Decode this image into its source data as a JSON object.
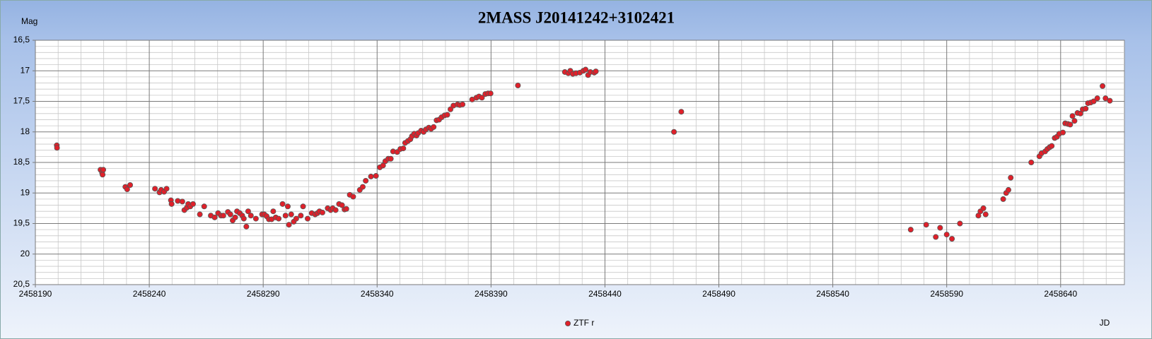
{
  "chart_data": {
    "type": "scatter",
    "title": "2MASS J20141242+3102421",
    "ylabel": "Mag",
    "xlabel": "JD",
    "xlim": [
      2458190,
      2458668
    ],
    "xticks": [
      2458190,
      2458240,
      2458290,
      2458340,
      2458390,
      2458440,
      2458490,
      2458540,
      2458590,
      2458640
    ],
    "ylim": [
      16.5,
      20.5
    ],
    "y_inverted": true,
    "yticks": [
      {
        "value": 16.5,
        "label": "16,5"
      },
      17,
      {
        "value": 17.5,
        "label": "17,5"
      },
      18,
      {
        "value": 18.5,
        "label": "18,5"
      },
      19,
      {
        "value": 19.5,
        "label": "19,5"
      },
      20,
      {
        "value": 20.5,
        "label": "20,5"
      }
    ],
    "grid": true,
    "minor_grid": true,
    "legend": "bottom",
    "x": [
      2458199.4,
      2458199.5,
      2458218.6,
      2458219.3,
      2458219.8,
      2458219.5,
      2458229.5,
      2458230.3,
      2458231.6,
      2458242.5,
      2458244.5,
      2458245.2,
      2458246.5,
      2458247.6,
      2458249.5,
      2458249.8,
      2458252.5,
      2458254.5,
      2458255.4,
      2458256.5,
      2458257.1,
      2458258.0,
      2458259.2,
      2458262.2,
      2458264.1,
      2458267.0,
      2458268.7,
      2458270.2,
      2458271.5,
      2458272.5,
      2458274.5,
      2458275.6,
      2458276.6,
      2458277.7,
      2458278.5,
      2458279.7,
      2458280.8,
      2458281.5,
      2458282.6,
      2458283.4,
      2458284.6,
      2458286.8,
      2458289.5,
      2458290.5,
      2458291.5,
      2458292.5,
      2458293.7,
      2458294.4,
      2458295.5,
      2458296.8,
      2458298.5,
      2458299.8,
      2458300.8,
      2458301.3,
      2458302.3,
      2458303.4,
      2458304.5,
      2458306.5,
      2458307.5,
      2458309.5,
      2458311.3,
      2458312.8,
      2458313.8,
      2458314.7,
      2458316.0,
      2458318.3,
      2458319.6,
      2458320.5,
      2458321.8,
      2458323.3,
      2458324.6,
      2458325.7,
      2458326.5,
      2458328.0,
      2458329.5,
      2458332.4,
      2458333.7,
      2458335.0,
      2458337.3,
      2458339.5,
      2458341.2,
      2458342.6,
      2458343.6,
      2458344.9,
      2458346.0,
      2458347.0,
      2458348.8,
      2458350.2,
      2458351.5,
      2458352.3,
      2458353.5,
      2458354.6,
      2458355.3,
      2458356.3,
      2458357.3,
      2458358.0,
      2458359.3,
      2458360.4,
      2458361.4,
      2458362.7,
      2458363.7,
      2458364.8,
      2458366.1,
      2458367.2,
      2458368.3,
      2458369.6,
      2458370.8,
      2458372.2,
      2458373.5,
      2458375.3,
      2458376.3,
      2458377.5,
      2458381.7,
      2458383.6,
      2458384.7,
      2458386.0,
      2458387.5,
      2458388.7,
      2458389.8,
      2458401.8,
      2458422.4,
      2458423.9,
      2458424.8,
      2458425.9,
      2458427.3,
      2458429.0,
      2458430.5,
      2458431.5,
      2458432.6,
      2458433.6,
      2458435.3,
      2458436.0,
      2458470.3,
      2458473.5,
      2458574.2,
      2458581.0,
      2458585.2,
      2458587.1,
      2458590.0,
      2458592.3,
      2458595.8,
      2458603.9,
      2458604.8,
      2458606.1,
      2458607.1,
      2458614.8,
      2458616.1,
      2458617.1,
      2458618.1,
      2458627.1,
      2458630.7,
      2458631.6,
      2458633.2,
      2458634.2,
      2458635.2,
      2458636.1,
      2458637.4,
      2458638.4,
      2458639.4,
      2458641.0,
      2458642.0,
      2458643.2,
      2458644.2,
      2458645.2,
      2458646.1,
      2458647.4,
      2458648.7,
      2458649.7,
      2458651.0,
      2458652.0,
      2458653.2,
      2458654.5,
      2458656.1,
      2458658.4,
      2458659.7,
      2458661.6
    ],
    "series": [
      {
        "name": "ZTF r",
        "color": "#e0202a",
        "values": [
          18.22,
          18.26,
          18.62,
          18.67,
          18.62,
          18.7,
          18.9,
          18.94,
          18.87,
          18.93,
          18.99,
          18.95,
          18.98,
          18.93,
          19.12,
          19.18,
          19.13,
          19.14,
          19.28,
          19.24,
          19.18,
          19.22,
          19.18,
          19.35,
          19.22,
          19.37,
          19.4,
          19.33,
          19.37,
          19.37,
          19.31,
          19.35,
          19.45,
          19.4,
          19.3,
          19.33,
          19.37,
          19.42,
          19.55,
          19.3,
          19.37,
          19.42,
          19.35,
          19.35,
          19.38,
          19.43,
          19.43,
          19.3,
          19.4,
          19.42,
          19.18,
          19.37,
          19.22,
          19.52,
          19.35,
          19.47,
          19.42,
          19.37,
          19.22,
          19.42,
          19.33,
          19.35,
          19.33,
          19.3,
          19.32,
          19.25,
          19.28,
          19.25,
          19.28,
          19.18,
          19.2,
          19.27,
          19.26,
          19.03,
          19.06,
          18.95,
          18.9,
          18.8,
          18.73,
          18.72,
          18.58,
          18.55,
          18.48,
          18.44,
          18.44,
          18.32,
          18.33,
          18.28,
          18.27,
          18.18,
          18.15,
          18.12,
          18.07,
          18.03,
          18.06,
          18.02,
          17.98,
          18.0,
          17.96,
          17.93,
          17.95,
          17.92,
          17.81,
          17.8,
          17.76,
          17.73,
          17.72,
          17.63,
          17.57,
          17.55,
          17.56,
          17.55,
          17.47,
          17.44,
          17.42,
          17.44,
          17.38,
          17.37,
          17.37,
          17.24,
          17.02,
          17.04,
          17.0,
          17.05,
          17.04,
          17.03,
          17.0,
          16.98,
          17.07,
          17.02,
          17.03,
          17.01,
          18.0,
          17.67,
          19.6,
          19.52,
          19.72,
          19.57,
          19.68,
          19.75,
          19.5,
          19.37,
          19.3,
          19.25,
          19.35,
          19.1,
          19.0,
          18.95,
          18.75,
          18.5,
          18.4,
          18.35,
          18.32,
          18.28,
          18.25,
          18.23,
          18.1,
          18.08,
          18.03,
          18.01,
          17.86,
          17.87,
          17.88,
          17.74,
          17.82,
          17.69,
          17.7,
          17.63,
          17.62,
          17.53,
          17.52,
          17.5,
          17.45,
          17.25,
          17.45,
          17.49
        ]
      }
    ]
  }
}
